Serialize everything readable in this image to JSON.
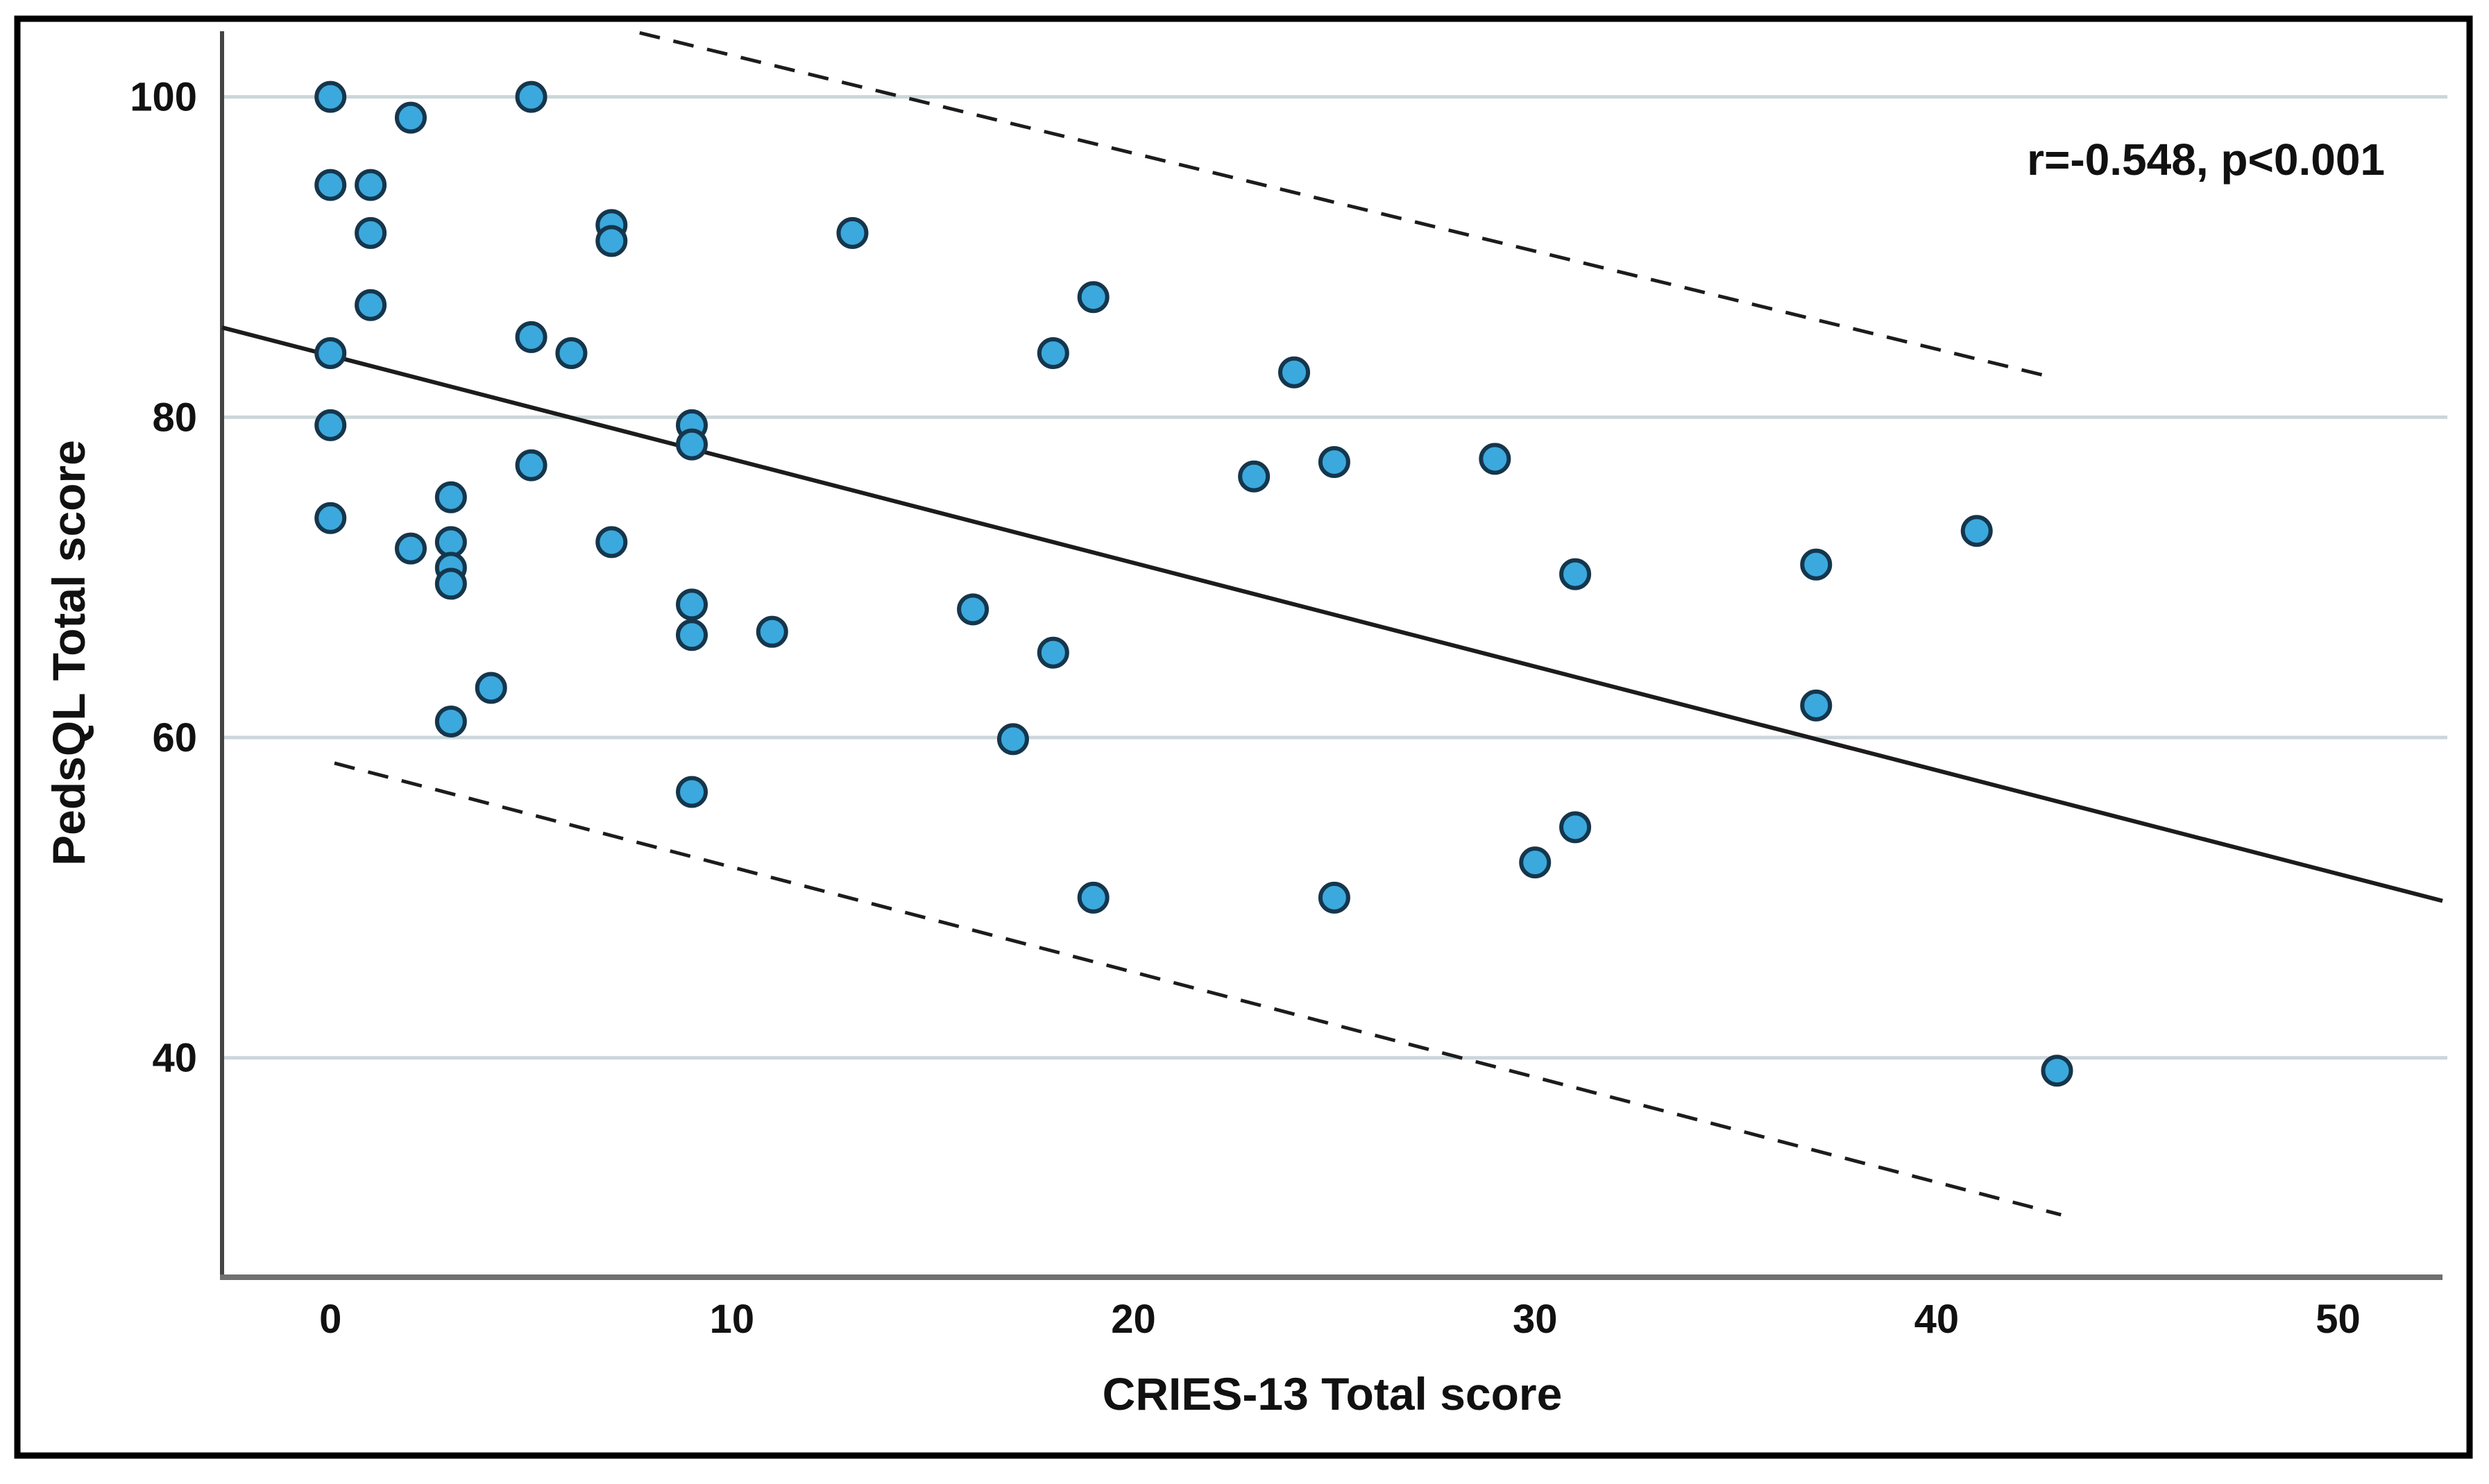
{
  "figure": {
    "background": "#ffffff",
    "border_color": "#000000",
    "annotation_text": "r=-0.548, p<0.001"
  },
  "chart_data": {
    "type": "scatter",
    "title": "",
    "xlabel": "CRIES-13 Total score",
    "ylabel": "PedsQL Total score",
    "xlim": [
      -2.7,
      52.6
    ],
    "ylim": [
      26.3,
      104.1
    ],
    "xticks": [
      0,
      10,
      20,
      30,
      40,
      50
    ],
    "yticks": [
      40,
      60,
      80,
      100
    ],
    "grid": "horizontal-only",
    "legend_position": "none",
    "annotation": "r=-0.548, p<0.001",
    "colors": {
      "point_fill": "#3BA9DD",
      "point_stroke": "#15364C",
      "line_color": "#1C1C1C",
      "gridline_color": "#CBD6DA",
      "y_axis_color": "#444444",
      "x_axis_color": "#707070"
    },
    "points": [
      [
        0,
        100
      ],
      [
        5,
        100
      ],
      [
        2,
        98.7
      ],
      [
        0,
        94.5
      ],
      [
        1,
        94.5
      ],
      [
        1,
        91.5
      ],
      [
        7,
        92
      ],
      [
        7,
        91
      ],
      [
        13,
        91.5
      ],
      [
        19,
        87.5
      ],
      [
        1,
        87
      ],
      [
        5,
        85
      ],
      [
        0,
        84
      ],
      [
        6,
        84
      ],
      [
        18,
        84
      ],
      [
        24,
        82.8
      ],
      [
        0,
        79.5
      ],
      [
        9,
        79.5
      ],
      [
        9,
        78.3
      ],
      [
        29,
        77.4
      ],
      [
        25,
        77.2
      ],
      [
        5,
        77
      ],
      [
        23,
        76.3
      ],
      [
        3,
        75
      ],
      [
        0,
        73.7
      ],
      [
        41,
        72.9
      ],
      [
        7,
        72.2
      ],
      [
        3,
        72.2
      ],
      [
        2,
        71.8
      ],
      [
        37,
        70.8
      ],
      [
        3,
        70.6
      ],
      [
        31,
        70.2
      ],
      [
        3,
        69.6
      ],
      [
        9,
        68.3
      ],
      [
        16,
        68
      ],
      [
        11,
        66.6
      ],
      [
        9,
        66.4
      ],
      [
        18,
        65.3
      ],
      [
        4,
        63.1
      ],
      [
        37,
        62
      ],
      [
        3,
        61
      ],
      [
        17,
        59.9
      ],
      [
        9,
        56.6
      ],
      [
        31,
        54.4
      ],
      [
        30,
        52.2
      ],
      [
        19,
        50
      ],
      [
        25,
        50
      ],
      [
        43,
        39.2
      ]
    ],
    "regression_line": {
      "x1": -2.7,
      "y1": 85.6,
      "x2": 52.6,
      "y2": 49.8,
      "style": "solid"
    },
    "ci_upper_line": {
      "x1": 7.7,
      "y1": 104.0,
      "x2": 42.7,
      "y2": 82.6,
      "style": "dashed"
    },
    "ci_lower_line": {
      "x1": 0.1,
      "y1": 58.4,
      "x2": 43.1,
      "y2": 30.2,
      "style": "dashed"
    }
  }
}
